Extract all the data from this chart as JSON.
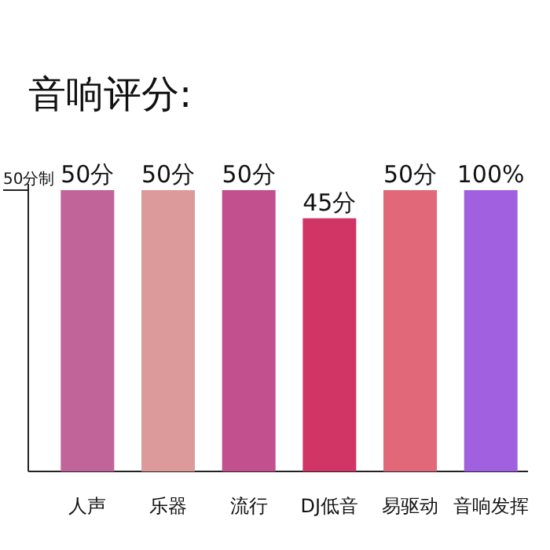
{
  "chart_data": {
    "type": "bar",
    "title": "音响评分:",
    "ylabel": "50分制",
    "categories": [
      "人声",
      "乐器",
      "流行",
      "DJ低音",
      "易驱动",
      "音响发挥"
    ],
    "values": [
      50,
      50,
      50,
      45,
      50,
      50
    ],
    "value_labels": [
      "50分",
      "50分",
      "50分",
      "45分",
      "50分",
      null
    ],
    "annotations": [
      {
        "text": "100%",
        "x": "音响发挥",
        "y": 50
      }
    ],
    "colors": [
      "#c0649a",
      "#dc9a9a",
      "#c2508f",
      "#d03566",
      "#e06878",
      "#a060e0"
    ],
    "ylim": [
      0,
      50
    ],
    "tick_labels": "x"
  }
}
